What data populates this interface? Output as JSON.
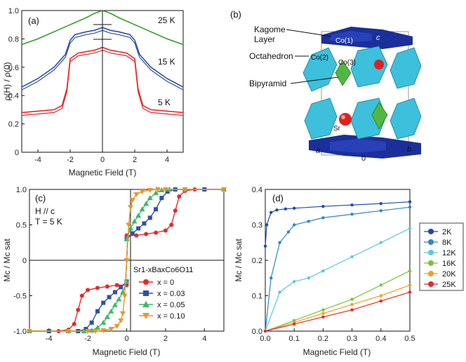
{
  "panels": {
    "a": {
      "label": "(a)",
      "xlabel": "Magnetic Field (T)",
      "ylabel": "ρ(H) / ρ(0)",
      "xticks": [
        "-4",
        "-2",
        "0",
        "2",
        "4"
      ],
      "yticks": [
        "0",
        "0.2",
        "0.4",
        "0.6",
        "0.8",
        "1.0"
      ],
      "annotations": [
        "25 K",
        "15 K",
        "5 K"
      ]
    },
    "b": {
      "label": "(b)",
      "labels": {
        "kagome": "Kagome",
        "layer": "Layer",
        "octa": "Octahedron",
        "bipy": "Bipyramid",
        "co1": "Co(1)",
        "co2": "Co(2)",
        "co3": "Co(3)",
        "sr": "Sr",
        "axis_c": "c",
        "axis_a": "a",
        "axis_b": "b",
        "origin": "0"
      }
    },
    "c": {
      "label": "(c)",
      "cond1": "H // c",
      "cond2": "T = 5 K",
      "xlabel": "Magnetic Field (T)",
      "ylabel": "Mc / Mc sat",
      "xticks": [
        "-4",
        "-2",
        "0",
        "2",
        "4"
      ],
      "yticks": [
        "-1.0",
        "-0.5",
        "0",
        "0.5",
        "1.0"
      ],
      "legend_title": "Sr1-xBaxCo6O11",
      "legend": [
        "x = 0",
        "x = 0.03",
        "x = 0.05",
        "x = 0.10"
      ]
    },
    "d": {
      "label": "(d)",
      "xlabel": "Magnetic Field (T)",
      "ylabel": "Mc / Mc sat",
      "xticks": [
        "0.0",
        "0.1",
        "0.2",
        "0.3",
        "0.4",
        "0.5"
      ],
      "yticks": [
        "0.0",
        "0.1",
        "0.2",
        "0.3",
        "0.4"
      ],
      "legend": [
        "2K",
        "8K",
        "12K",
        "16K",
        "20K",
        "25K"
      ]
    }
  },
  "colors": {
    "red": "#e8282a",
    "blue": "#2f4fa8",
    "green": "#2ca02c",
    "green_c": "#3cb86a",
    "orange": "#e8962c",
    "d_2K": "#1f4aa8",
    "d_8K": "#2e86c8",
    "d_12K": "#5cc8e0",
    "d_16K": "#7cc040",
    "d_20K": "#f0a020",
    "d_25K": "#e82828",
    "kagome": "#1a2f9a",
    "octa": "#3cc0dc",
    "bipy": "#50b840",
    "sr": "#e02020"
  },
  "chart_data": [
    {
      "panel": "a",
      "type": "line",
      "xlim": [
        -5,
        5
      ],
      "ylim": [
        0,
        1.0
      ],
      "series": [
        {
          "name": "25 K",
          "x": [
            -5,
            -4,
            -3,
            -2,
            -1,
            -0.5,
            0,
            0.5,
            1,
            2,
            3,
            4,
            5
          ],
          "y": [
            0.76,
            0.8,
            0.85,
            0.9,
            0.95,
            0.98,
            1.0,
            0.98,
            0.95,
            0.9,
            0.85,
            0.8,
            0.76
          ]
        },
        {
          "name": "15 K",
          "x": [
            -5,
            -4,
            -3,
            -2.3,
            -2,
            -1.7,
            -1,
            -0.5,
            0,
            0.5,
            1,
            1.7,
            2,
            2.3,
            3,
            4,
            5
          ],
          "y": [
            0.46,
            0.52,
            0.6,
            0.69,
            0.79,
            0.83,
            0.85,
            0.86,
            0.88,
            0.86,
            0.85,
            0.83,
            0.79,
            0.69,
            0.6,
            0.52,
            0.46
          ]
        },
        {
          "name": "5 K",
          "x": [
            -5,
            -4,
            -3,
            -2.5,
            -2.2,
            -2,
            -1.5,
            -0.5,
            0,
            0.5,
            1.5,
            2,
            2.2,
            2.5,
            3,
            4,
            5
          ],
          "y": [
            0.28,
            0.29,
            0.3,
            0.33,
            0.45,
            0.66,
            0.7,
            0.72,
            0.74,
            0.72,
            0.7,
            0.66,
            0.45,
            0.33,
            0.3,
            0.29,
            0.28
          ]
        }
      ]
    },
    {
      "panel": "c",
      "type": "scatter",
      "xlim": [
        -5,
        5
      ],
      "ylim": [
        -1.0,
        1.0
      ],
      "series": [
        {
          "name": "x = 0",
          "x": [
            0,
            0.5,
            1,
            1.5,
            2,
            2.3,
            2.5,
            2.7,
            3,
            3.5,
            4,
            5
          ],
          "y": [
            0.35,
            0.35,
            0.37,
            0.39,
            0.42,
            0.5,
            0.7,
            0.9,
            0.98,
            1.0,
            1.0,
            1.0
          ]
        },
        {
          "name": "x = 0.03",
          "x": [
            0,
            0.3,
            0.6,
            0.9,
            1.2,
            1.5,
            1.8,
            2.1,
            2.5,
            3,
            4,
            5
          ],
          "y": [
            0.3,
            0.38,
            0.45,
            0.52,
            0.6,
            0.72,
            0.88,
            0.97,
            1.0,
            1.0,
            1.0,
            1.0
          ]
        },
        {
          "name": "x = 0.05",
          "x": [
            0,
            0.2,
            0.4,
            0.6,
            0.8,
            1.0,
            1.2,
            1.5,
            1.8,
            2.2,
            3,
            5
          ],
          "y": [
            0.3,
            0.45,
            0.55,
            0.63,
            0.72,
            0.8,
            0.88,
            0.95,
            0.99,
            1.0,
            1.0,
            1.0
          ]
        },
        {
          "name": "x = 0.10",
          "x": [
            0,
            0.1,
            0.2,
            0.3,
            0.5,
            0.8,
            1.2,
            1.6,
            2,
            3,
            5
          ],
          "y": [
            0.0,
            0.5,
            0.75,
            0.85,
            0.93,
            0.97,
            0.99,
            1.0,
            1.0,
            1.0,
            1.0
          ]
        }
      ]
    },
    {
      "panel": "d",
      "type": "line",
      "xlim": [
        0,
        0.5
      ],
      "ylim": [
        0,
        0.4
      ],
      "series": [
        {
          "name": "2K",
          "x": [
            0,
            0.005,
            0.02,
            0.04,
            0.07,
            0.1,
            0.2,
            0.3,
            0.4,
            0.5
          ],
          "y": [
            0.24,
            0.3,
            0.335,
            0.342,
            0.345,
            0.347,
            0.352,
            0.356,
            0.36,
            0.365
          ]
        },
        {
          "name": "8K",
          "x": [
            0,
            0.02,
            0.05,
            0.08,
            0.1,
            0.15,
            0.2,
            0.3,
            0.4,
            0.5
          ],
          "y": [
            0.0,
            0.15,
            0.25,
            0.28,
            0.3,
            0.31,
            0.32,
            0.33,
            0.34,
            0.35
          ]
        },
        {
          "name": "12K",
          "x": [
            0,
            0.05,
            0.1,
            0.15,
            0.2,
            0.3,
            0.4,
            0.5
          ],
          "y": [
            0.0,
            0.11,
            0.14,
            0.15,
            0.17,
            0.21,
            0.25,
            0.29
          ]
        },
        {
          "name": "16K",
          "x": [
            0,
            0.1,
            0.2,
            0.3,
            0.4,
            0.5
          ],
          "y": [
            0.0,
            0.03,
            0.06,
            0.09,
            0.13,
            0.17
          ]
        },
        {
          "name": "20K",
          "x": [
            0,
            0.1,
            0.2,
            0.3,
            0.4,
            0.5
          ],
          "y": [
            0.0,
            0.025,
            0.05,
            0.075,
            0.1,
            0.13
          ]
        },
        {
          "name": "25K",
          "x": [
            0,
            0.1,
            0.2,
            0.3,
            0.4,
            0.5
          ],
          "y": [
            0.0,
            0.02,
            0.04,
            0.06,
            0.085,
            0.11
          ]
        }
      ]
    }
  ]
}
